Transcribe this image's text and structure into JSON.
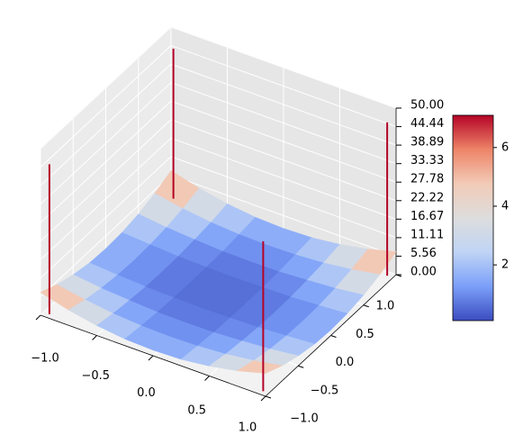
{
  "chart_data": {
    "type": "surface3d",
    "xlim": [
      -1,
      1
    ],
    "ylim": [
      -1,
      1
    ],
    "zlim": [
      0,
      50
    ],
    "xticks": [
      {
        "value": -1,
        "label": "−1.0"
      },
      {
        "value": -0.5,
        "label": "−0.5"
      },
      {
        "value": 0,
        "label": "0.0"
      },
      0.5,
      {
        "value": 1,
        "label": "1.0"
      }
    ],
    "yticks": [
      {
        "value": -1,
        "label": "−1.0"
      },
      {
        "value": -0.5,
        "label": "−0.5"
      },
      {
        "value": 0,
        "label": "0.0"
      },
      0.5,
      {
        "value": 1,
        "label": "1.0"
      }
    ],
    "zticks": [
      {
        "value": 0,
        "label": "0.00"
      },
      5.56,
      11.11,
      16.67,
      22.22,
      27.78,
      33.33,
      38.89,
      44.44,
      {
        "value": 50,
        "label": "50.00"
      }
    ],
    "surface": {
      "x": [
        -1,
        -0.75,
        -0.5,
        -0.25,
        0,
        0.25,
        0.5,
        0.75,
        1
      ],
      "y": [
        -1,
        -0.75,
        -0.5,
        -0.25,
        0,
        0.25,
        0.5,
        0.75,
        1
      ],
      "z": [
        [
          6.9,
          4.6,
          3.0,
          2.0,
          1.7,
          2.0,
          3.0,
          4.6,
          6.9
        ],
        [
          4.6,
          3.1,
          2.0,
          1.4,
          1.2,
          1.4,
          2.0,
          3.1,
          4.6
        ],
        [
          3.0,
          2.0,
          1.4,
          0.9,
          0.8,
          0.9,
          1.4,
          2.0,
          3.0
        ],
        [
          2.0,
          1.4,
          0.9,
          0.7,
          0.6,
          0.7,
          0.9,
          1.4,
          2.0
        ],
        [
          1.7,
          1.2,
          0.8,
          0.6,
          0.5,
          0.6,
          0.8,
          1.2,
          1.7
        ],
        [
          2.0,
          1.4,
          0.9,
          0.7,
          0.6,
          0.7,
          0.9,
          1.4,
          2.0
        ],
        [
          3.0,
          2.0,
          1.4,
          0.9,
          0.8,
          0.9,
          1.4,
          2.0,
          3.0
        ],
        [
          4.6,
          3.1,
          2.0,
          1.4,
          1.2,
          1.4,
          2.0,
          3.1,
          4.6
        ],
        [
          6.9,
          4.6,
          3.0,
          2.0,
          1.7,
          2.0,
          3.0,
          4.6,
          6.9
        ]
      ]
    },
    "peaks": {
      "x": [
        -0.95,
        0.95,
        -0.95,
        0.95
      ],
      "y": [
        -0.95,
        -0.95,
        0.95,
        0.95
      ],
      "z": [
        45,
        45,
        45,
        46
      ],
      "color": "#b40426"
    },
    "colormap": [
      "#3b4cc0",
      "#7b9ff9",
      "#c0d4f5",
      "#dddddd",
      "#f2cbb7",
      "#ee8468",
      "#b40426"
    ],
    "colorbar": {
      "lim": [
        0.1,
        7.1
      ],
      "ticks": [
        2,
        4,
        6
      ]
    },
    "grid": true
  }
}
